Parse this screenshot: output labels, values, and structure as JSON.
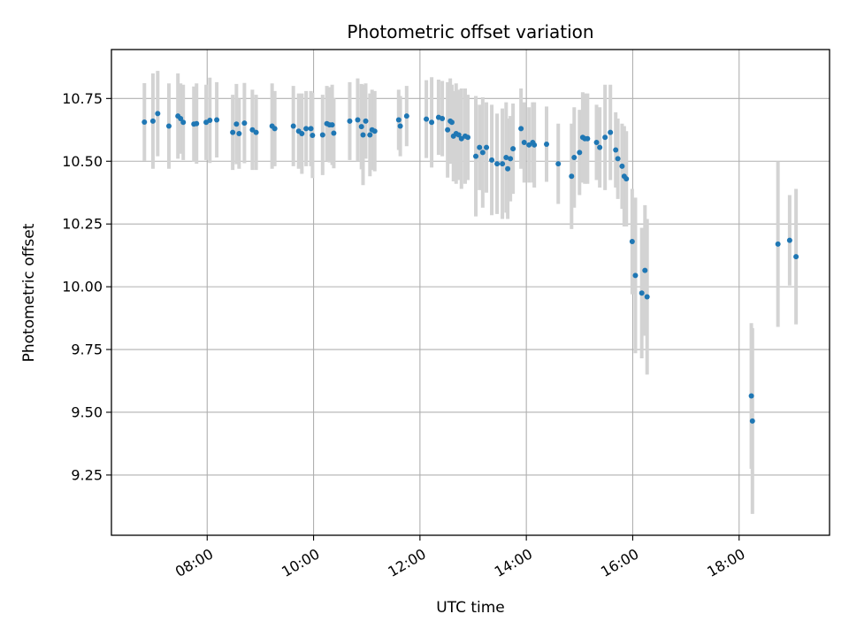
{
  "chart_data": {
    "type": "scatter",
    "title": "Photometric offset variation",
    "xlabel": "UTC time",
    "ylabel": "Photometric offset",
    "x_unit": "hours UTC",
    "xlim": [
      6.2,
      19.7
    ],
    "ylim": [
      9.01,
      10.945
    ],
    "x_ticks": [
      8,
      10,
      12,
      14,
      16,
      18
    ],
    "x_tick_labels": [
      "08:00",
      "10:00",
      "12:00",
      "14:00",
      "16:00",
      "18:00"
    ],
    "y_ticks": [
      9.25,
      9.5,
      9.75,
      10.0,
      10.25,
      10.5,
      10.75
    ],
    "y_tick_labels": [
      "9.25",
      "9.50",
      "9.75",
      "10.00",
      "10.25",
      "10.50",
      "10.75"
    ],
    "grid": true,
    "colors": {
      "point": "#1f77b4",
      "errorbar": "#d3d3d3",
      "grid": "#b0b0b0"
    },
    "points": [
      [
        6.82,
        10.656,
        0.155
      ],
      [
        6.98,
        10.66,
        0.19
      ],
      [
        7.07,
        10.69,
        0.17
      ],
      [
        7.28,
        10.64,
        0.17
      ],
      [
        7.45,
        10.68,
        0.17
      ],
      [
        7.5,
        10.67,
        0.14
      ],
      [
        7.55,
        10.655,
        0.15
      ],
      [
        7.75,
        10.648,
        0.15
      ],
      [
        7.8,
        10.65,
        0.16
      ],
      [
        7.98,
        10.655,
        0.15
      ],
      [
        8.05,
        10.663,
        0.17
      ],
      [
        8.18,
        10.665,
        0.15
      ],
      [
        8.48,
        10.615,
        0.15
      ],
      [
        8.55,
        10.648,
        0.16
      ],
      [
        8.6,
        10.61,
        0.14
      ],
      [
        8.7,
        10.652,
        0.16
      ],
      [
        8.85,
        10.625,
        0.16
      ],
      [
        8.92,
        10.615,
        0.15
      ],
      [
        9.22,
        10.64,
        0.17
      ],
      [
        9.27,
        10.63,
        0.15
      ],
      [
        9.62,
        10.64,
        0.16
      ],
      [
        9.72,
        10.62,
        0.15
      ],
      [
        9.78,
        10.61,
        0.16
      ],
      [
        9.86,
        10.63,
        0.15
      ],
      [
        9.95,
        10.63,
        0.15
      ],
      [
        9.98,
        10.603,
        0.17
      ],
      [
        10.17,
        10.605,
        0.16
      ],
      [
        10.25,
        10.65,
        0.15
      ],
      [
        10.3,
        10.645,
        0.15
      ],
      [
        10.35,
        10.645,
        0.16
      ],
      [
        10.38,
        10.612,
        0.14
      ],
      [
        10.68,
        10.66,
        0.155
      ],
      [
        10.83,
        10.665,
        0.165
      ],
      [
        10.9,
        10.638,
        0.17
      ],
      [
        10.93,
        10.605,
        0.2
      ],
      [
        10.98,
        10.66,
        0.15
      ],
      [
        11.06,
        10.605,
        0.165
      ],
      [
        11.1,
        10.625,
        0.16
      ],
      [
        11.15,
        10.62,
        0.16
      ],
      [
        11.6,
        10.665,
        0.12
      ],
      [
        11.63,
        10.64,
        0.12
      ],
      [
        11.75,
        10.68,
        0.12
      ],
      [
        12.12,
        10.668,
        0.155
      ],
      [
        12.22,
        10.655,
        0.18
      ],
      [
        12.35,
        10.675,
        0.15
      ],
      [
        12.42,
        10.67,
        0.15
      ],
      [
        12.52,
        10.625,
        0.19
      ],
      [
        12.57,
        10.66,
        0.17
      ],
      [
        12.6,
        10.655,
        0.15
      ],
      [
        12.63,
        10.6,
        0.18
      ],
      [
        12.68,
        10.61,
        0.2
      ],
      [
        12.73,
        10.605,
        0.18
      ],
      [
        12.78,
        10.59,
        0.2
      ],
      [
        12.85,
        10.6,
        0.19
      ],
      [
        12.9,
        10.595,
        0.17
      ],
      [
        13.05,
        10.52,
        0.24
      ],
      [
        13.12,
        10.555,
        0.17
      ],
      [
        13.18,
        10.535,
        0.22
      ],
      [
        13.25,
        10.555,
        0.18
      ],
      [
        13.35,
        10.505,
        0.22
      ],
      [
        13.45,
        10.49,
        0.2
      ],
      [
        13.55,
        10.49,
        0.22
      ],
      [
        13.62,
        10.515,
        0.22
      ],
      [
        13.65,
        10.47,
        0.2
      ],
      [
        13.7,
        10.51,
        0.17
      ],
      [
        13.75,
        10.55,
        0.18
      ],
      [
        13.9,
        10.63,
        0.16
      ],
      [
        13.96,
        10.575,
        0.16
      ],
      [
        14.05,
        10.565,
        0.15
      ],
      [
        14.12,
        10.575,
        0.16
      ],
      [
        14.15,
        10.565,
        0.17
      ],
      [
        14.38,
        10.568,
        0.15
      ],
      [
        14.6,
        10.49,
        0.16
      ],
      [
        14.85,
        10.44,
        0.21
      ],
      [
        14.9,
        10.515,
        0.2
      ],
      [
        15.0,
        10.535,
        0.17
      ],
      [
        15.06,
        10.595,
        0.18
      ],
      [
        15.1,
        10.59,
        0.18
      ],
      [
        15.15,
        10.59,
        0.18
      ],
      [
        15.32,
        10.575,
        0.15
      ],
      [
        15.38,
        10.555,
        0.16
      ],
      [
        15.48,
        10.595,
        0.21
      ],
      [
        15.58,
        10.615,
        0.19
      ],
      [
        15.68,
        10.545,
        0.15
      ],
      [
        15.72,
        10.51,
        0.16
      ],
      [
        15.8,
        10.48,
        0.17
      ],
      [
        15.84,
        10.44,
        0.2
      ],
      [
        15.88,
        10.43,
        0.19
      ],
      [
        15.99,
        10.18,
        0.21
      ],
      [
        16.05,
        10.045,
        0.31
      ],
      [
        16.17,
        9.975,
        0.26
      ],
      [
        16.23,
        10.065,
        0.26
      ],
      [
        16.27,
        9.96,
        0.31
      ],
      [
        18.23,
        9.565,
        0.29
      ],
      [
        18.25,
        9.465,
        0.37
      ],
      [
        18.73,
        10.17,
        0.33
      ],
      [
        18.95,
        10.185,
        0.18
      ],
      [
        19.07,
        10.12,
        0.27
      ]
    ]
  }
}
